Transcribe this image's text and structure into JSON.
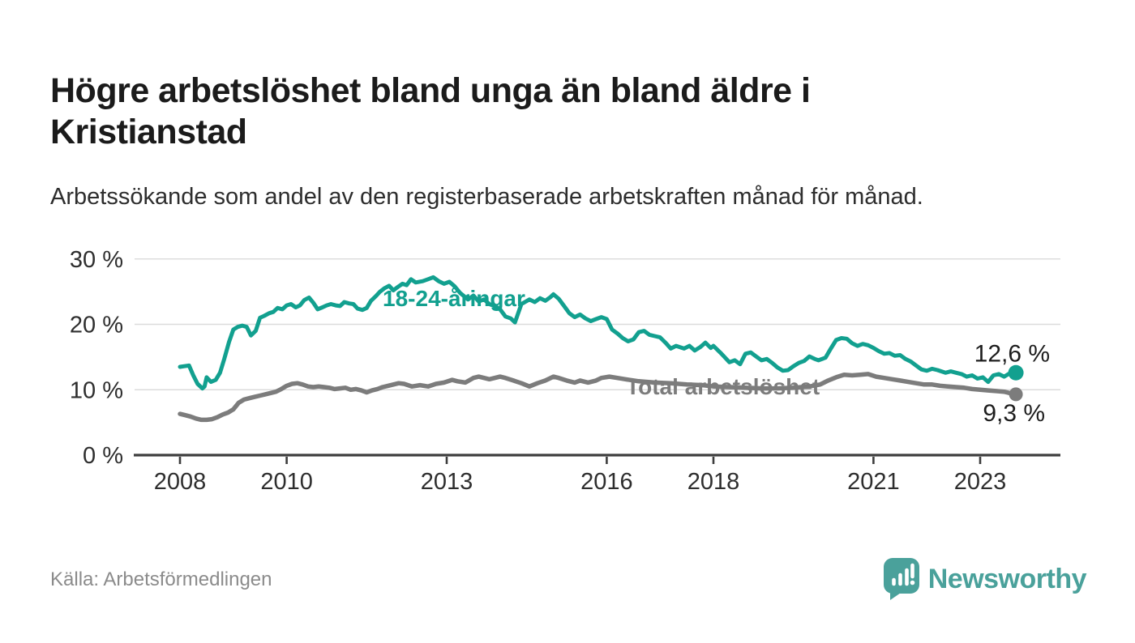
{
  "header": {
    "title": "Högre arbetslöshet bland unga än bland äldre i Kristianstad",
    "subtitle": "Arbetssökande som andel av den registerbaserade arbetskraften månad för månad."
  },
  "footer": {
    "source": "Källa: Arbetsförmedlingen",
    "brand": "Newsworthy",
    "brand_icon": "newsworthy-bubble-barchart-icon"
  },
  "colors": {
    "young": "#12a08f",
    "total": "#7c7c7c",
    "grid": "#dcdcdc",
    "axis": "#3d3d3d",
    "tick_text": "#2e2e2e",
    "end_label_text": "#1d1d1d",
    "brand": "#4aa19b"
  },
  "chart_data": {
    "type": "line",
    "title": "Högre arbetslöshet bland unga än bland äldre i Kristianstad",
    "subtitle": "Arbetssökande som andel av den registerbaserade arbetskraften månad för månad.",
    "grid": true,
    "legend_position": "inline-labels",
    "x_axis": {
      "unit": "year",
      "range_shown": [
        2007.2,
        2024.5
      ],
      "ticks": [
        {
          "v": 2008,
          "label": "2008"
        },
        {
          "v": 2010,
          "label": "2010"
        },
        {
          "v": 2013,
          "label": "2013"
        },
        {
          "v": 2016,
          "label": "2016"
        },
        {
          "v": 2018,
          "label": "2018"
        },
        {
          "v": 2021,
          "label": "2021"
        },
        {
          "v": 2023,
          "label": "2023"
        }
      ]
    },
    "y_axis": {
      "unit": "%",
      "range": [
        0,
        33
      ],
      "ticks": [
        {
          "v": 0,
          "label": "0 %"
        },
        {
          "v": 10,
          "label": "10 %"
        },
        {
          "v": 20,
          "label": "20 %"
        },
        {
          "v": 30,
          "label": "30 %"
        }
      ]
    },
    "series": [
      {
        "name": "18-24-åringar",
        "color_key": "young",
        "line_width": 5,
        "dot_radius": 9.5,
        "end_label": "12,6 %",
        "end_value": 12.6,
        "label_pos": {
          "x": 2011.8,
          "y": 24.0
        },
        "points": [
          [
            2008.0,
            13.5
          ],
          [
            2008.08,
            13.6
          ],
          [
            2008.17,
            13.7
          ],
          [
            2008.25,
            12.2
          ],
          [
            2008.33,
            10.9
          ],
          [
            2008.42,
            10.2
          ],
          [
            2008.46,
            10.5
          ],
          [
            2008.5,
            11.9
          ],
          [
            2008.58,
            11.2
          ],
          [
            2008.67,
            11.5
          ],
          [
            2008.75,
            12.6
          ],
          [
            2008.83,
            14.7
          ],
          [
            2008.92,
            17.3
          ],
          [
            2009.0,
            19.2
          ],
          [
            2009.08,
            19.6
          ],
          [
            2009.17,
            19.8
          ],
          [
            2009.25,
            19.6
          ],
          [
            2009.33,
            18.3
          ],
          [
            2009.42,
            19.0
          ],
          [
            2009.5,
            21.0
          ],
          [
            2009.58,
            21.3
          ],
          [
            2009.67,
            21.7
          ],
          [
            2009.75,
            21.9
          ],
          [
            2009.83,
            22.5
          ],
          [
            2009.92,
            22.3
          ],
          [
            2010.0,
            22.9
          ],
          [
            2010.08,
            23.1
          ],
          [
            2010.17,
            22.6
          ],
          [
            2010.25,
            22.9
          ],
          [
            2010.33,
            23.7
          ],
          [
            2010.42,
            24.1
          ],
          [
            2010.5,
            23.3
          ],
          [
            2010.58,
            22.3
          ],
          [
            2010.67,
            22.6
          ],
          [
            2010.75,
            22.9
          ],
          [
            2010.83,
            23.1
          ],
          [
            2010.92,
            22.9
          ],
          [
            2011.0,
            22.8
          ],
          [
            2011.08,
            23.4
          ],
          [
            2011.17,
            23.2
          ],
          [
            2011.25,
            23.1
          ],
          [
            2011.33,
            22.4
          ],
          [
            2011.42,
            22.2
          ],
          [
            2011.5,
            22.5
          ],
          [
            2011.58,
            23.6
          ],
          [
            2011.67,
            24.3
          ],
          [
            2011.75,
            25.0
          ],
          [
            2011.83,
            25.5
          ],
          [
            2011.92,
            25.9
          ],
          [
            2012.0,
            25.2
          ],
          [
            2012.08,
            25.7
          ],
          [
            2012.17,
            26.2
          ],
          [
            2012.25,
            26.0
          ],
          [
            2012.33,
            26.9
          ],
          [
            2012.42,
            26.4
          ],
          [
            2012.55,
            26.6
          ],
          [
            2012.65,
            26.9
          ],
          [
            2012.75,
            27.2
          ],
          [
            2012.85,
            26.6
          ],
          [
            2012.95,
            26.2
          ],
          [
            2013.05,
            26.5
          ],
          [
            2013.15,
            25.8
          ],
          [
            2013.25,
            24.8
          ],
          [
            2013.4,
            23.8
          ],
          [
            2013.5,
            24.4
          ],
          [
            2013.6,
            23.5
          ],
          [
            2013.7,
            23.8
          ],
          [
            2013.8,
            23.1
          ],
          [
            2013.9,
            22.8
          ],
          [
            2014.0,
            22.3
          ],
          [
            2014.1,
            21.2
          ],
          [
            2014.2,
            20.9
          ],
          [
            2014.28,
            20.3
          ],
          [
            2014.4,
            23.1
          ],
          [
            2014.55,
            23.8
          ],
          [
            2014.65,
            23.4
          ],
          [
            2014.75,
            24.0
          ],
          [
            2014.85,
            23.6
          ],
          [
            2014.95,
            24.2
          ],
          [
            2015.0,
            24.6
          ],
          [
            2015.1,
            23.9
          ],
          [
            2015.2,
            22.8
          ],
          [
            2015.3,
            21.7
          ],
          [
            2015.4,
            21.1
          ],
          [
            2015.5,
            21.5
          ],
          [
            2015.6,
            20.9
          ],
          [
            2015.7,
            20.5
          ],
          [
            2015.8,
            20.8
          ],
          [
            2015.9,
            21.1
          ],
          [
            2016.0,
            20.8
          ],
          [
            2016.1,
            19.2
          ],
          [
            2016.2,
            18.6
          ],
          [
            2016.3,
            17.9
          ],
          [
            2016.4,
            17.4
          ],
          [
            2016.5,
            17.7
          ],
          [
            2016.6,
            18.8
          ],
          [
            2016.7,
            19.0
          ],
          [
            2016.8,
            18.4
          ],
          [
            2016.9,
            18.2
          ],
          [
            2017.0,
            18.0
          ],
          [
            2017.1,
            17.2
          ],
          [
            2017.2,
            16.3
          ],
          [
            2017.3,
            16.7
          ],
          [
            2017.45,
            16.3
          ],
          [
            2017.55,
            16.7
          ],
          [
            2017.65,
            16.0
          ],
          [
            2017.75,
            16.5
          ],
          [
            2017.85,
            17.2
          ],
          [
            2017.95,
            16.4
          ],
          [
            2018.0,
            16.7
          ],
          [
            2018.15,
            15.5
          ],
          [
            2018.3,
            14.2
          ],
          [
            2018.4,
            14.5
          ],
          [
            2018.5,
            13.9
          ],
          [
            2018.6,
            15.5
          ],
          [
            2018.7,
            15.7
          ],
          [
            2018.8,
            15.1
          ],
          [
            2018.9,
            14.5
          ],
          [
            2019.0,
            14.7
          ],
          [
            2019.1,
            14.1
          ],
          [
            2019.2,
            13.4
          ],
          [
            2019.3,
            12.9
          ],
          [
            2019.4,
            13.0
          ],
          [
            2019.5,
            13.6
          ],
          [
            2019.6,
            14.1
          ],
          [
            2019.7,
            14.4
          ],
          [
            2019.8,
            15.1
          ],
          [
            2019.9,
            14.7
          ],
          [
            2019.97,
            14.5
          ],
          [
            2020.1,
            14.9
          ],
          [
            2020.2,
            16.3
          ],
          [
            2020.3,
            17.6
          ],
          [
            2020.4,
            17.9
          ],
          [
            2020.5,
            17.8
          ],
          [
            2020.6,
            17.1
          ],
          [
            2020.7,
            16.7
          ],
          [
            2020.8,
            17.0
          ],
          [
            2020.9,
            16.8
          ],
          [
            2021.0,
            16.4
          ],
          [
            2021.1,
            15.9
          ],
          [
            2021.2,
            15.5
          ],
          [
            2021.3,
            15.6
          ],
          [
            2021.4,
            15.2
          ],
          [
            2021.5,
            15.3
          ],
          [
            2021.6,
            14.7
          ],
          [
            2021.7,
            14.3
          ],
          [
            2021.8,
            13.7
          ],
          [
            2021.9,
            13.1
          ],
          [
            2022.0,
            12.9
          ],
          [
            2022.1,
            13.2
          ],
          [
            2022.2,
            13.0
          ],
          [
            2022.35,
            12.6
          ],
          [
            2022.45,
            12.8
          ],
          [
            2022.55,
            12.6
          ],
          [
            2022.65,
            12.4
          ],
          [
            2022.75,
            12.0
          ],
          [
            2022.85,
            12.2
          ],
          [
            2022.95,
            11.7
          ],
          [
            2023.05,
            11.9
          ],
          [
            2023.15,
            11.2
          ],
          [
            2023.25,
            12.2
          ],
          [
            2023.35,
            12.4
          ],
          [
            2023.45,
            12.0
          ],
          [
            2023.55,
            12.5
          ],
          [
            2023.67,
            12.6
          ]
        ]
      },
      {
        "name": "Total arbetslöshet",
        "color_key": "total",
        "line_width": 5.5,
        "dot_radius": 8.5,
        "end_label": "9,3 %",
        "end_value": 9.3,
        "label_pos": {
          "x": 2016.36,
          "y": 10.5
        },
        "points": [
          [
            2008.0,
            6.3
          ],
          [
            2008.1,
            6.1
          ],
          [
            2008.2,
            5.9
          ],
          [
            2008.3,
            5.6
          ],
          [
            2008.4,
            5.4
          ],
          [
            2008.5,
            5.4
          ],
          [
            2008.6,
            5.5
          ],
          [
            2008.7,
            5.8
          ],
          [
            2008.8,
            6.2
          ],
          [
            2008.9,
            6.5
          ],
          [
            2009.0,
            7.0
          ],
          [
            2009.1,
            8.0
          ],
          [
            2009.2,
            8.5
          ],
          [
            2009.3,
            8.7
          ],
          [
            2009.4,
            8.9
          ],
          [
            2009.5,
            9.1
          ],
          [
            2009.6,
            9.3
          ],
          [
            2009.7,
            9.5
          ],
          [
            2009.8,
            9.7
          ],
          [
            2009.9,
            10.1
          ],
          [
            2010.0,
            10.6
          ],
          [
            2010.1,
            10.9
          ],
          [
            2010.2,
            11.0
          ],
          [
            2010.3,
            10.8
          ],
          [
            2010.4,
            10.5
          ],
          [
            2010.5,
            10.4
          ],
          [
            2010.6,
            10.5
          ],
          [
            2010.7,
            10.4
          ],
          [
            2010.8,
            10.3
          ],
          [
            2010.9,
            10.1
          ],
          [
            2011.0,
            10.2
          ],
          [
            2011.1,
            10.3
          ],
          [
            2011.2,
            10.0
          ],
          [
            2011.3,
            10.1
          ],
          [
            2011.4,
            9.9
          ],
          [
            2011.5,
            9.6
          ],
          [
            2011.6,
            9.9
          ],
          [
            2011.7,
            10.1
          ],
          [
            2011.8,
            10.4
          ],
          [
            2011.9,
            10.6
          ],
          [
            2012.0,
            10.8
          ],
          [
            2012.1,
            11.0
          ],
          [
            2012.2,
            10.9
          ],
          [
            2012.35,
            10.5
          ],
          [
            2012.5,
            10.7
          ],
          [
            2012.65,
            10.5
          ],
          [
            2012.8,
            10.9
          ],
          [
            2012.95,
            11.1
          ],
          [
            2013.1,
            11.5
          ],
          [
            2013.2,
            11.3
          ],
          [
            2013.35,
            11.1
          ],
          [
            2013.5,
            11.8
          ],
          [
            2013.6,
            12.0
          ],
          [
            2013.7,
            11.8
          ],
          [
            2013.8,
            11.6
          ],
          [
            2013.9,
            11.8
          ],
          [
            2014.0,
            12.0
          ],
          [
            2014.1,
            11.8
          ],
          [
            2014.25,
            11.4
          ],
          [
            2014.4,
            11.0
          ],
          [
            2014.55,
            10.5
          ],
          [
            2014.7,
            11.0
          ],
          [
            2014.85,
            11.4
          ],
          [
            2015.0,
            12.0
          ],
          [
            2015.1,
            11.8
          ],
          [
            2015.25,
            11.4
          ],
          [
            2015.4,
            11.1
          ],
          [
            2015.5,
            11.4
          ],
          [
            2015.65,
            11.1
          ],
          [
            2015.8,
            11.4
          ],
          [
            2015.9,
            11.8
          ],
          [
            2016.05,
            12.0
          ],
          [
            2016.2,
            11.8
          ],
          [
            2016.35,
            11.6
          ],
          [
            2016.6,
            11.3
          ],
          [
            2016.9,
            11.1
          ],
          [
            2017.2,
            11.0
          ],
          [
            2017.5,
            10.8
          ],
          [
            2017.8,
            10.7
          ],
          [
            2018.0,
            10.5
          ],
          [
            2018.3,
            10.4
          ],
          [
            2018.6,
            10.3
          ],
          [
            2018.9,
            10.2
          ],
          [
            2019.2,
            10.2
          ],
          [
            2019.5,
            10.3
          ],
          [
            2019.8,
            10.5
          ],
          [
            2020.0,
            10.8
          ],
          [
            2020.15,
            11.4
          ],
          [
            2020.3,
            11.9
          ],
          [
            2020.45,
            12.3
          ],
          [
            2020.6,
            12.2
          ],
          [
            2020.75,
            12.3
          ],
          [
            2020.9,
            12.4
          ],
          [
            2021.05,
            12.0
          ],
          [
            2021.2,
            11.8
          ],
          [
            2021.35,
            11.6
          ],
          [
            2021.5,
            11.4
          ],
          [
            2021.65,
            11.2
          ],
          [
            2021.8,
            11.0
          ],
          [
            2021.95,
            10.8
          ],
          [
            2022.1,
            10.8
          ],
          [
            2022.25,
            10.6
          ],
          [
            2022.4,
            10.5
          ],
          [
            2022.55,
            10.4
          ],
          [
            2022.7,
            10.3
          ],
          [
            2022.85,
            10.1
          ],
          [
            2023.0,
            10.0
          ],
          [
            2023.15,
            9.9
          ],
          [
            2023.3,
            9.8
          ],
          [
            2023.45,
            9.7
          ],
          [
            2023.55,
            9.5
          ],
          [
            2023.67,
            9.3
          ]
        ]
      }
    ]
  }
}
